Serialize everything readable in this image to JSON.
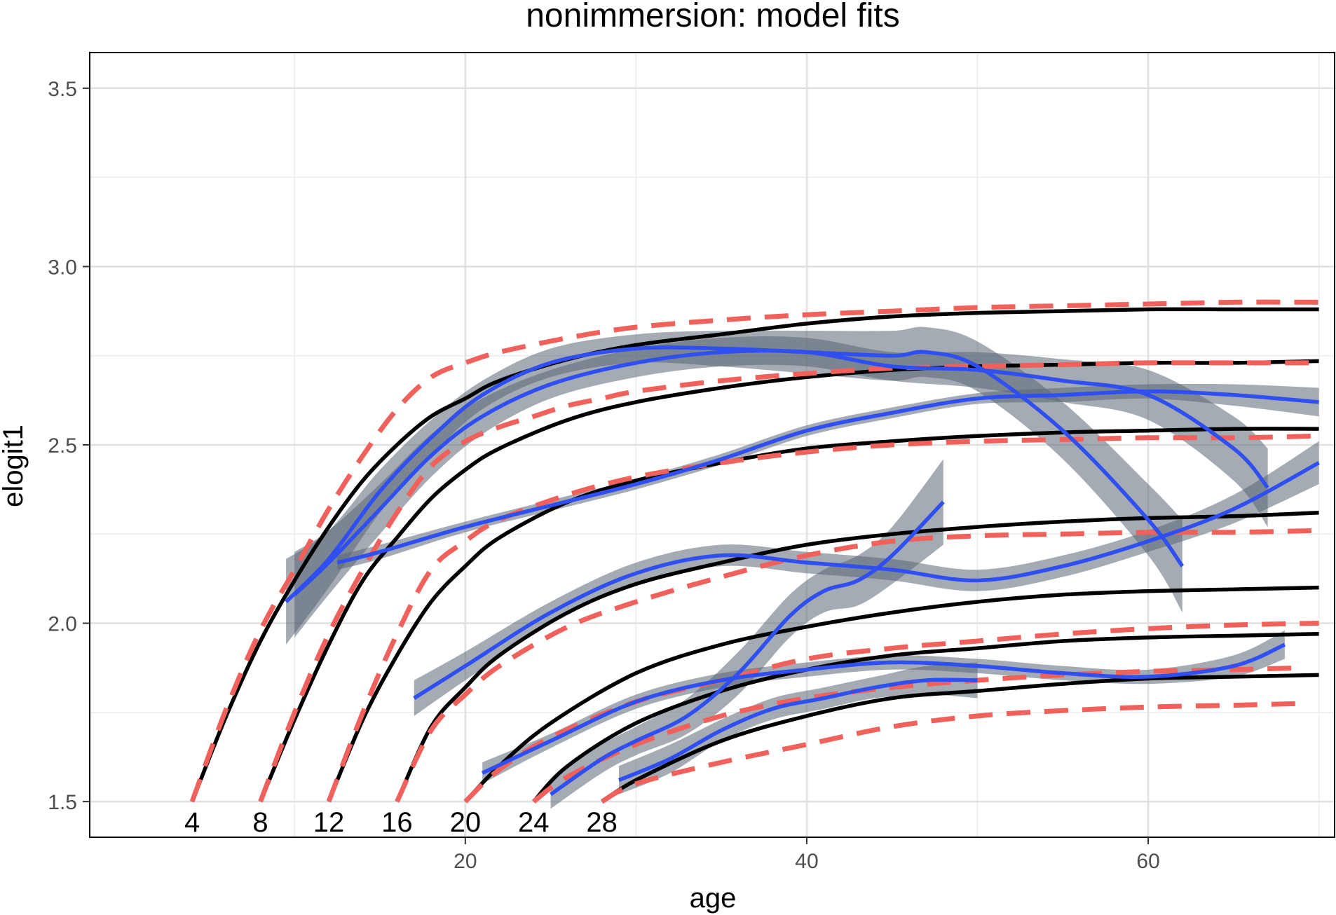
{
  "chart_data": {
    "type": "line",
    "title": "nonimmersion: model fits",
    "xlabel": "age",
    "ylabel": "elogit1",
    "xlim": [
      -2,
      71
    ],
    "ylim": [
      1.4,
      3.6
    ],
    "x_ticks": [
      20,
      40,
      60
    ],
    "x_tick_labels": [
      "20",
      "40",
      "60"
    ],
    "y_ticks": [
      1.5,
      2.0,
      2.5,
      3.0,
      3.5
    ],
    "y_tick_labels": [
      "1.5",
      "2.0",
      "2.5",
      "3.0",
      "3.5"
    ],
    "grid": true,
    "legend": "none",
    "colors": {
      "model_solid": "#000000",
      "model_dashed": "#f0615c",
      "smooth": "#2f4ff0",
      "ribbon": "#5a6675"
    },
    "start_labels": [
      {
        "x": 4,
        "text": "4"
      },
      {
        "x": 8,
        "text": "8"
      },
      {
        "x": 12,
        "text": "12"
      },
      {
        "x": 16,
        "text": "16"
      },
      {
        "x": 20,
        "text": "20"
      },
      {
        "x": 24,
        "text": "24"
      },
      {
        "x": 28,
        "text": "28"
      }
    ],
    "series": [
      {
        "style": "solid",
        "start": 4,
        "x": [
          4,
          6,
          8,
          10,
          12,
          14,
          16,
          18,
          20,
          22,
          26,
          30,
          35,
          40,
          45,
          50,
          55,
          60,
          65,
          70
        ],
        "y": [
          1.5,
          1.74,
          1.95,
          2.12,
          2.27,
          2.4,
          2.5,
          2.58,
          2.63,
          2.68,
          2.74,
          2.78,
          2.81,
          2.84,
          2.86,
          2.87,
          2.875,
          2.88,
          2.88,
          2.88
        ]
      },
      {
        "style": "solid",
        "start": 8,
        "x": [
          8,
          10,
          12,
          14,
          16,
          18,
          20,
          22,
          26,
          30,
          35,
          40,
          45,
          50,
          55,
          60,
          65,
          70
        ],
        "y": [
          1.5,
          1.73,
          1.94,
          2.12,
          2.24,
          2.35,
          2.43,
          2.49,
          2.57,
          2.62,
          2.66,
          2.69,
          2.71,
          2.72,
          2.725,
          2.73,
          2.73,
          2.735
        ]
      },
      {
        "style": "solid",
        "start": 12,
        "x": [
          12,
          14,
          16,
          18,
          20,
          22,
          26,
          30,
          35,
          40,
          45,
          50,
          55,
          60,
          65,
          70
        ],
        "y": [
          1.5,
          1.73,
          1.91,
          2.06,
          2.16,
          2.24,
          2.34,
          2.4,
          2.45,
          2.49,
          2.51,
          2.525,
          2.535,
          2.54,
          2.545,
          2.545
        ]
      },
      {
        "style": "solid",
        "start": 16,
        "x": [
          16,
          18,
          20,
          22,
          26,
          30,
          35,
          40,
          45,
          50,
          55,
          60,
          65,
          70
        ],
        "y": [
          1.5,
          1.71,
          1.82,
          1.91,
          2.03,
          2.11,
          2.17,
          2.22,
          2.25,
          2.27,
          2.285,
          2.295,
          2.3,
          2.31
        ]
      },
      {
        "style": "solid",
        "start": 20,
        "x": [
          20,
          22,
          25,
          30,
          35,
          40,
          45,
          50,
          55,
          60,
          65,
          70
        ],
        "y": [
          1.5,
          1.6,
          1.72,
          1.86,
          1.94,
          1.99,
          2.03,
          2.06,
          2.08,
          2.09,
          2.095,
          2.1
        ]
      },
      {
        "style": "solid",
        "start": 24,
        "x": [
          24,
          26,
          30,
          35,
          40,
          45,
          50,
          55,
          60,
          65,
          70
        ],
        "y": [
          1.5,
          1.6,
          1.72,
          1.81,
          1.87,
          1.91,
          1.93,
          1.95,
          1.96,
          1.965,
          1.97
        ]
      },
      {
        "style": "solid",
        "start": 28,
        "x": [
          28,
          30,
          35,
          40,
          45,
          50,
          55,
          60,
          65,
          70
        ],
        "y": [
          1.5,
          1.56,
          1.67,
          1.74,
          1.79,
          1.81,
          1.83,
          1.845,
          1.85,
          1.855
        ]
      },
      {
        "style": "dashed",
        "start": 4,
        "x": [
          4,
          6,
          8,
          10,
          12,
          14,
          16,
          18,
          20,
          22,
          26,
          30,
          35,
          40,
          45,
          50,
          55,
          60,
          65,
          70
        ],
        "y": [
          1.5,
          1.76,
          1.98,
          2.15,
          2.32,
          2.47,
          2.6,
          2.69,
          2.73,
          2.76,
          2.8,
          2.83,
          2.85,
          2.865,
          2.875,
          2.885,
          2.89,
          2.895,
          2.9,
          2.9
        ]
      },
      {
        "style": "dashed",
        "start": 8,
        "x": [
          8,
          10,
          12,
          14,
          16,
          18,
          20,
          22,
          24,
          26,
          28,
          30,
          35,
          40,
          45,
          50,
          55,
          60,
          65,
          70
        ],
        "y": [
          1.5,
          1.75,
          1.97,
          2.15,
          2.31,
          2.44,
          2.51,
          2.55,
          2.58,
          2.61,
          2.63,
          2.65,
          2.68,
          2.7,
          2.715,
          2.72,
          2.725,
          2.73,
          2.73,
          2.73
        ]
      },
      {
        "style": "dashed",
        "start": 12,
        "x": [
          12,
          14,
          16,
          18,
          20,
          22,
          26,
          30,
          35,
          40,
          45,
          50,
          55,
          60,
          65,
          70
        ],
        "y": [
          1.5,
          1.75,
          1.97,
          2.15,
          2.23,
          2.29,
          2.36,
          2.41,
          2.45,
          2.48,
          2.5,
          2.51,
          2.515,
          2.52,
          2.52,
          2.525
        ]
      },
      {
        "style": "dashed",
        "start": 16,
        "x": [
          16,
          18,
          20,
          22,
          26,
          30,
          35,
          40,
          45,
          50,
          55,
          60,
          65,
          70
        ],
        "y": [
          1.5,
          1.7,
          1.8,
          1.88,
          1.99,
          2.06,
          2.13,
          2.19,
          2.23,
          2.245,
          2.25,
          2.255,
          2.255,
          2.26
        ]
      },
      {
        "style": "dashed",
        "start": 20,
        "x": [
          20,
          22,
          25,
          30,
          35,
          40,
          45,
          50,
          55,
          60,
          65,
          70
        ],
        "y": [
          1.5,
          1.59,
          1.68,
          1.78,
          1.84,
          1.9,
          1.93,
          1.95,
          1.97,
          1.985,
          1.995,
          2.0
        ]
      },
      {
        "style": "dashed",
        "start": 24,
        "x": [
          24,
          26,
          30,
          35,
          40,
          45,
          50,
          55,
          60,
          65,
          69
        ],
        "y": [
          1.5,
          1.57,
          1.66,
          1.74,
          1.79,
          1.82,
          1.84,
          1.855,
          1.865,
          1.87,
          1.875
        ]
      },
      {
        "style": "dashed",
        "start": 28,
        "x": [
          28,
          30,
          35,
          40,
          45,
          50,
          55,
          60,
          65,
          69
        ],
        "y": [
          1.5,
          1.55,
          1.61,
          1.66,
          1.71,
          1.74,
          1.755,
          1.765,
          1.77,
          1.775
        ]
      },
      {
        "style": "smooth",
        "x": [
          9.5,
          12,
          15,
          18,
          21,
          25,
          30,
          35,
          40,
          45,
          47,
          50,
          55,
          60,
          62
        ],
        "y": [
          2.06,
          2.18,
          2.37,
          2.52,
          2.64,
          2.73,
          2.77,
          2.77,
          2.76,
          2.75,
          2.76,
          2.72,
          2.54,
          2.29,
          2.16
        ],
        "band": [
          0.12,
          0.08,
          0.06,
          0.05,
          0.04,
          0.04,
          0.04,
          0.05,
          0.06,
          0.07,
          0.07,
          0.07,
          0.08,
          0.1,
          0.13
        ]
      },
      {
        "style": "smooth",
        "x": [
          10,
          12,
          15,
          18,
          21,
          25,
          30,
          35,
          40,
          45,
          50,
          55,
          60,
          65,
          67
        ],
        "y": [
          2.08,
          2.17,
          2.32,
          2.47,
          2.58,
          2.67,
          2.73,
          2.76,
          2.76,
          2.72,
          2.71,
          2.68,
          2.64,
          2.49,
          2.38
        ],
        "band": [
          0.12,
          0.09,
          0.07,
          0.06,
          0.05,
          0.04,
          0.04,
          0.04,
          0.04,
          0.04,
          0.05,
          0.06,
          0.07,
          0.09,
          0.11
        ]
      },
      {
        "style": "smooth",
        "x": [
          12.5,
          15,
          20,
          25,
          30,
          35,
          40,
          45,
          50,
          55,
          60,
          65,
          70
        ],
        "y": [
          2.17,
          2.2,
          2.27,
          2.33,
          2.39,
          2.46,
          2.54,
          2.59,
          2.63,
          2.64,
          2.65,
          2.64,
          2.62
        ],
        "band": [
          0.02,
          0.02,
          0.015,
          0.015,
          0.015,
          0.015,
          0.015,
          0.015,
          0.015,
          0.02,
          0.02,
          0.03,
          0.04
        ]
      },
      {
        "style": "smooth",
        "x": [
          17,
          20,
          25,
          30,
          35,
          40,
          45,
          50,
          55,
          60,
          65,
          70
        ],
        "y": [
          1.79,
          1.88,
          2.03,
          2.14,
          2.19,
          2.17,
          2.15,
          2.12,
          2.16,
          2.23,
          2.32,
          2.45
        ],
        "band": [
          0.05,
          0.04,
          0.03,
          0.03,
          0.03,
          0.03,
          0.03,
          0.03,
          0.03,
          0.03,
          0.04,
          0.06
        ]
      },
      {
        "style": "smooth",
        "x": [
          21,
          25,
          30,
          35,
          40,
          45,
          50,
          55,
          60,
          65,
          68
        ],
        "y": [
          1.58,
          1.67,
          1.78,
          1.84,
          1.87,
          1.89,
          1.88,
          1.86,
          1.85,
          1.88,
          1.94
        ],
        "band": [
          0.03,
          0.02,
          0.02,
          0.02,
          0.02,
          0.02,
          0.02,
          0.02,
          0.02,
          0.03,
          0.04
        ]
      },
      {
        "style": "smooth",
        "x": [
          25,
          28,
          30,
          33,
          36,
          39,
          41,
          43,
          45,
          48
        ],
        "y": [
          1.52,
          1.62,
          1.67,
          1.74,
          1.86,
          2.02,
          2.09,
          2.12,
          2.19,
          2.34
        ],
        "band": [
          0.04,
          0.04,
          0.04,
          0.05,
          0.06,
          0.06,
          0.06,
          0.07,
          0.08,
          0.12
        ]
      },
      {
        "style": "smooth",
        "x": [
          29,
          32,
          35,
          38,
          41,
          44,
          47,
          50
        ],
        "y": [
          1.56,
          1.62,
          1.7,
          1.76,
          1.79,
          1.82,
          1.84,
          1.84
        ],
        "band": [
          0.04,
          0.04,
          0.03,
          0.03,
          0.03,
          0.03,
          0.04,
          0.05
        ]
      }
    ]
  }
}
